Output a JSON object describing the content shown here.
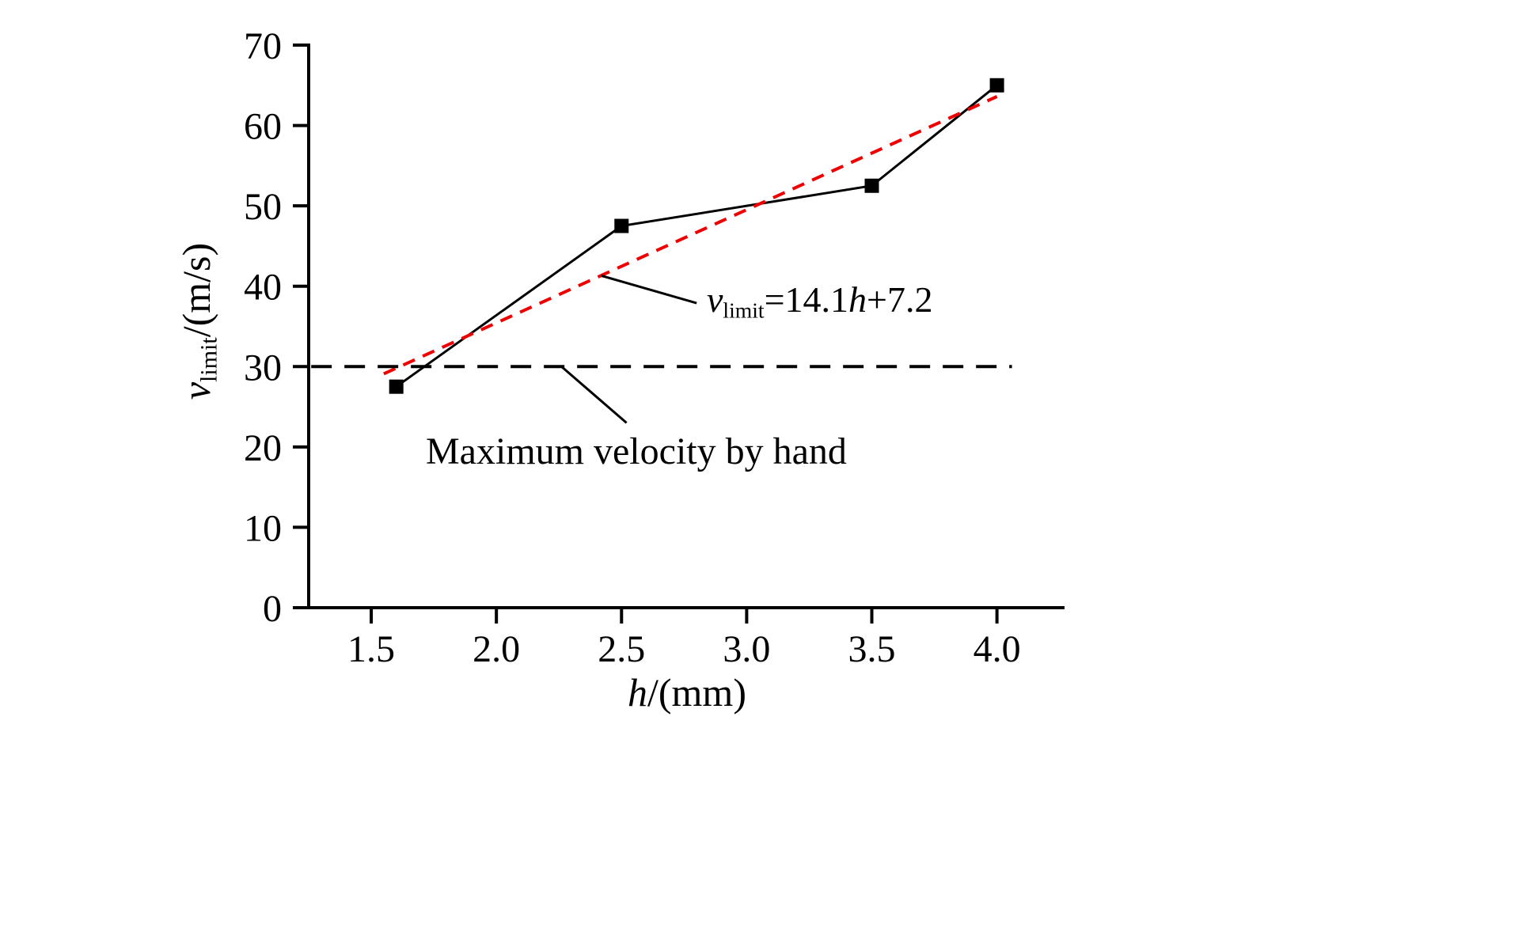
{
  "chart_data": {
    "type": "line",
    "title": "",
    "xlabel": "h/(mm)",
    "ylabel": "v_limit/(m/s)",
    "xlabel_parts": [
      {
        "text": "h",
        "style": "italic"
      },
      {
        "text": "/(mm)",
        "style": "normal"
      }
    ],
    "ylabel_parts": [
      {
        "text": "v",
        "style": "italic"
      },
      {
        "text": "limit",
        "style": "subscript"
      },
      {
        "text": "/(m/s)",
        "style": "normal"
      }
    ],
    "xlim": [
      1.25,
      4.27
    ],
    "ylim": [
      0,
      70
    ],
    "grid": false,
    "legend": "none",
    "axis_color": "#000000",
    "x_tick_values": [
      1.5,
      2.0,
      2.5,
      3.0,
      3.5,
      4.0
    ],
    "x_tick_labels": [
      "1.5",
      "2.0",
      "2.5",
      "3.0",
      "3.5",
      "4.0"
    ],
    "y_tick_values": [
      0,
      10,
      20,
      30,
      40,
      50,
      60,
      70
    ],
    "y_tick_labels": [
      "0",
      "10",
      "20",
      "30",
      "40",
      "50",
      "60",
      "70"
    ],
    "series": [
      {
        "name": "measured-vlimit",
        "color": "#000000",
        "line_style": "solid",
        "line_width": 3,
        "marker": "square",
        "marker_size": 18,
        "x": [
          1.6,
          2.5,
          3.5,
          4.0
        ],
        "y": [
          27.5,
          47.5,
          52.5,
          65.0
        ]
      },
      {
        "name": "linear-fit",
        "equation": "v_limit=14.1h+7.2",
        "color": "#ee0000",
        "line_style": "dashed",
        "dash": "16 11",
        "line_width": 4,
        "marker": "none",
        "x": [
          1.55,
          4.0
        ],
        "y": [
          29.1,
          63.6
        ]
      },
      {
        "name": "max-velocity-by-hand",
        "color": "#000000",
        "line_style": "dashed",
        "dash": "26 16",
        "line_width": 4,
        "marker": "none",
        "x": [
          1.26,
          4.06
        ],
        "y": [
          30.0,
          30.0
        ]
      }
    ],
    "annotations": [
      {
        "name": "fit-equation-label",
        "text": "v_limit=14.1h+7.2",
        "parts": [
          {
            "text": "v",
            "style": "italic"
          },
          {
            "text": "limit",
            "style": "subscript"
          },
          {
            "text": "=14.1",
            "style": "normal"
          },
          {
            "text": "h",
            "style": "italic"
          },
          {
            "text": "+7.2",
            "style": "normal"
          }
        ],
        "leader": {
          "x1": 2.42,
          "y1": 41.3,
          "x2": 2.8,
          "y2": 37.9
        }
      },
      {
        "name": "hand-limit-label",
        "text": "Maximum velocity by hand",
        "parts": [
          {
            "text": "Maximum velocity by hand",
            "style": "normal"
          }
        ],
        "leader": {
          "x1": 2.26,
          "y1": 30.0,
          "x2": 2.52,
          "y2": 23.0
        }
      }
    ]
  }
}
